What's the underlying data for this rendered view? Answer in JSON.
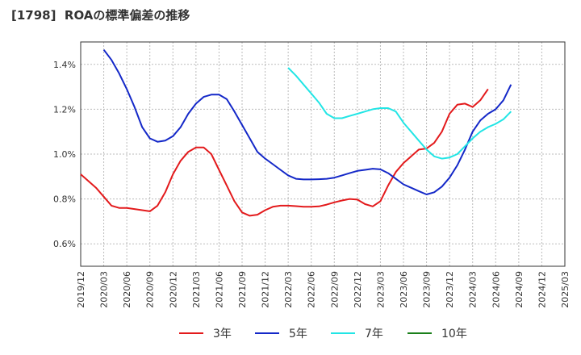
{
  "chart_data": {
    "type": "line",
    "title": "[1798]  ROAの標準偏差の推移",
    "xlabel": "",
    "ylabel": "",
    "ylim": [
      0.5,
      1.5
    ],
    "y_ticks": [
      0.6,
      0.8,
      1.0,
      1.2,
      1.4
    ],
    "y_tick_labels": [
      "0.6%",
      "0.8%",
      "1.0%",
      "1.2%",
      "1.4%"
    ],
    "x_tick_labels": [
      "2019/12",
      "2020/03",
      "2020/06",
      "2020/09",
      "2020/12",
      "2021/03",
      "2021/06",
      "2021/09",
      "2021/12",
      "2022/03",
      "2022/06",
      "2022/09",
      "2022/12",
      "2023/03",
      "2023/06",
      "2023/09",
      "2023/12",
      "2024/03",
      "2024/06",
      "2024/09",
      "2024/12",
      "2025/03"
    ],
    "grid": true,
    "legend_position": "bottom",
    "series": [
      {
        "name": "3年",
        "color": "#e31a1c",
        "start": "2019/12",
        "values": [
          0.91,
          0.88,
          0.85,
          0.81,
          0.77,
          0.76,
          0.76,
          0.755,
          0.75,
          0.745,
          0.77,
          0.83,
          0.91,
          0.97,
          1.01,
          1.03,
          1.03,
          1.0,
          0.93,
          0.86,
          0.79,
          0.74,
          0.725,
          0.73,
          0.75,
          0.765,
          0.77,
          0.77,
          0.768,
          0.765,
          0.765,
          0.767,
          0.775,
          0.785,
          0.793,
          0.8,
          0.797,
          0.777,
          0.767,
          0.79,
          0.86,
          0.92,
          0.96,
          0.99,
          1.02,
          1.025,
          1.05,
          1.1,
          1.18,
          1.22,
          1.225,
          1.21,
          1.24,
          1.29
        ]
      },
      {
        "name": "5年",
        "color": "#1428c8",
        "start": "2020/03",
        "values": [
          1.465,
          1.42,
          1.36,
          1.29,
          1.21,
          1.12,
          1.07,
          1.055,
          1.06,
          1.08,
          1.12,
          1.18,
          1.225,
          1.255,
          1.265,
          1.265,
          1.245,
          1.19,
          1.13,
          1.07,
          1.01,
          0.98,
          0.955,
          0.93,
          0.905,
          0.89,
          0.887,
          0.887,
          0.888,
          0.89,
          0.895,
          0.905,
          0.915,
          0.925,
          0.93,
          0.935,
          0.932,
          0.915,
          0.89,
          0.865,
          0.85,
          0.835,
          0.82,
          0.83,
          0.855,
          0.895,
          0.95,
          1.02,
          1.1,
          1.15,
          1.18,
          1.2,
          1.24,
          1.31
        ]
      },
      {
        "name": "7年",
        "color": "#22e5e5",
        "start": "2022/03",
        "values": [
          1.385,
          1.35,
          1.31,
          1.27,
          1.23,
          1.18,
          1.16,
          1.16,
          1.17,
          1.18,
          1.19,
          1.2,
          1.205,
          1.205,
          1.19,
          1.14,
          1.1,
          1.06,
          1.02,
          0.99,
          0.98,
          0.985,
          1.0,
          1.035,
          1.07,
          1.1,
          1.12,
          1.135,
          1.155,
          1.19
        ]
      },
      {
        "name": "10年",
        "color": "#1a7f1a",
        "start": "2024/12",
        "values": []
      }
    ]
  }
}
